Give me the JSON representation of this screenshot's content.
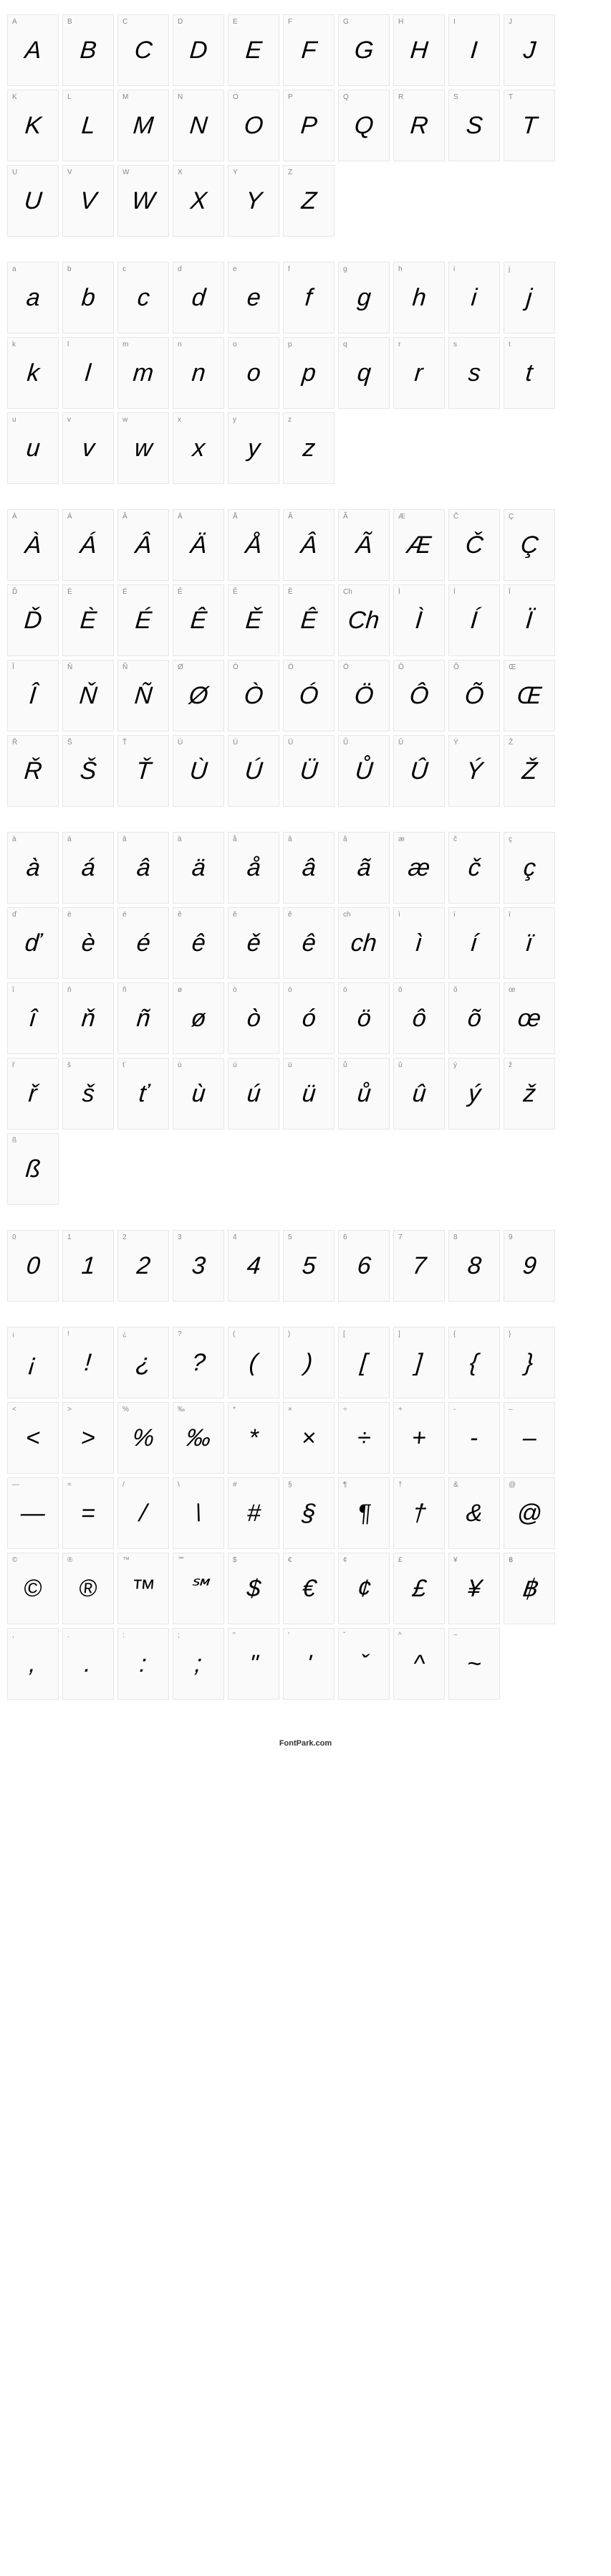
{
  "footer": "FontPark.com",
  "sections": [
    {
      "cells": [
        {
          "label": "A",
          "glyph": "A"
        },
        {
          "label": "B",
          "glyph": "B"
        },
        {
          "label": "C",
          "glyph": "C"
        },
        {
          "label": "D",
          "glyph": "D"
        },
        {
          "label": "E",
          "glyph": "E"
        },
        {
          "label": "F",
          "glyph": "F"
        },
        {
          "label": "G",
          "glyph": "G"
        },
        {
          "label": "H",
          "glyph": "H"
        },
        {
          "label": "I",
          "glyph": "I"
        },
        {
          "label": "J",
          "glyph": "J"
        },
        {
          "label": "K",
          "glyph": "K"
        },
        {
          "label": "L",
          "glyph": "L"
        },
        {
          "label": "M",
          "glyph": "M"
        },
        {
          "label": "N",
          "glyph": "N"
        },
        {
          "label": "O",
          "glyph": "O"
        },
        {
          "label": "P",
          "glyph": "P"
        },
        {
          "label": "Q",
          "glyph": "Q"
        },
        {
          "label": "R",
          "glyph": "R"
        },
        {
          "label": "S",
          "glyph": "S"
        },
        {
          "label": "T",
          "glyph": "T"
        },
        {
          "label": "U",
          "glyph": "U"
        },
        {
          "label": "V",
          "glyph": "V"
        },
        {
          "label": "W",
          "glyph": "W"
        },
        {
          "label": "X",
          "glyph": "X"
        },
        {
          "label": "Y",
          "glyph": "Y"
        },
        {
          "label": "Z",
          "glyph": "Z"
        }
      ]
    },
    {
      "cells": [
        {
          "label": "a",
          "glyph": "a"
        },
        {
          "label": "b",
          "glyph": "b"
        },
        {
          "label": "c",
          "glyph": "c"
        },
        {
          "label": "d",
          "glyph": "d"
        },
        {
          "label": "e",
          "glyph": "e"
        },
        {
          "label": "f",
          "glyph": "f"
        },
        {
          "label": "g",
          "glyph": "g"
        },
        {
          "label": "h",
          "glyph": "h"
        },
        {
          "label": "i",
          "glyph": "i"
        },
        {
          "label": "j",
          "glyph": "j"
        },
        {
          "label": "k",
          "glyph": "k"
        },
        {
          "label": "l",
          "glyph": "l"
        },
        {
          "label": "m",
          "glyph": "m"
        },
        {
          "label": "n",
          "glyph": "n"
        },
        {
          "label": "o",
          "glyph": "o"
        },
        {
          "label": "p",
          "glyph": "p"
        },
        {
          "label": "q",
          "glyph": "q"
        },
        {
          "label": "r",
          "glyph": "r"
        },
        {
          "label": "s",
          "glyph": "s"
        },
        {
          "label": "t",
          "glyph": "t"
        },
        {
          "label": "u",
          "glyph": "u"
        },
        {
          "label": "v",
          "glyph": "v"
        },
        {
          "label": "w",
          "glyph": "w"
        },
        {
          "label": "x",
          "glyph": "x"
        },
        {
          "label": "y",
          "glyph": "y"
        },
        {
          "label": "z",
          "glyph": "z"
        }
      ]
    },
    {
      "cells": [
        {
          "label": "À",
          "glyph": "À"
        },
        {
          "label": "Á",
          "glyph": "Á"
        },
        {
          "label": "Â",
          "glyph": "Â"
        },
        {
          "label": "Ä",
          "glyph": "Ä"
        },
        {
          "label": "Å",
          "glyph": "Å"
        },
        {
          "label": "Â",
          "glyph": "Â"
        },
        {
          "label": "Ã",
          "glyph": "Ã"
        },
        {
          "label": "Æ",
          "glyph": "Æ"
        },
        {
          "label": "Č",
          "glyph": "Č"
        },
        {
          "label": "Ç",
          "glyph": "Ç"
        },
        {
          "label": "Ď",
          "glyph": "Ď"
        },
        {
          "label": "È",
          "glyph": "È"
        },
        {
          "label": "É",
          "glyph": "É"
        },
        {
          "label": "Ê",
          "glyph": "Ê"
        },
        {
          "label": "Ě",
          "glyph": "Ě"
        },
        {
          "label": "Ê",
          "glyph": "Ê"
        },
        {
          "label": "Ch",
          "glyph": "Ch"
        },
        {
          "label": "Ì",
          "glyph": "Ì"
        },
        {
          "label": "Í",
          "glyph": "Í"
        },
        {
          "label": "Ï",
          "glyph": "Ï"
        },
        {
          "label": "Î",
          "glyph": "Î"
        },
        {
          "label": "Ň",
          "glyph": "Ň"
        },
        {
          "label": "Ñ",
          "glyph": "Ñ"
        },
        {
          "label": "Ø",
          "glyph": "Ø"
        },
        {
          "label": "Ò",
          "glyph": "Ò"
        },
        {
          "label": "Ó",
          "glyph": "Ó"
        },
        {
          "label": "Ö",
          "glyph": "Ö"
        },
        {
          "label": "Ô",
          "glyph": "Ô"
        },
        {
          "label": "Õ",
          "glyph": "Õ"
        },
        {
          "label": "Œ",
          "glyph": "Œ"
        },
        {
          "label": "Ř",
          "glyph": "Ř"
        },
        {
          "label": "Š",
          "glyph": "Š"
        },
        {
          "label": "Ť",
          "glyph": "Ť"
        },
        {
          "label": "Ù",
          "glyph": "Ù"
        },
        {
          "label": "Ú",
          "glyph": "Ú"
        },
        {
          "label": "Ü",
          "glyph": "Ü"
        },
        {
          "label": "Ů",
          "glyph": "Ů"
        },
        {
          "label": "Û",
          "glyph": "Û"
        },
        {
          "label": "Ý",
          "glyph": "Ý"
        },
        {
          "label": "Ž",
          "glyph": "Ž"
        }
      ]
    },
    {
      "cells": [
        {
          "label": "à",
          "glyph": "à"
        },
        {
          "label": "á",
          "glyph": "á"
        },
        {
          "label": "â",
          "glyph": "â"
        },
        {
          "label": "ä",
          "glyph": "ä"
        },
        {
          "label": "å",
          "glyph": "å"
        },
        {
          "label": "â",
          "glyph": "â"
        },
        {
          "label": "ã",
          "glyph": "ã"
        },
        {
          "label": "æ",
          "glyph": "æ"
        },
        {
          "label": "č",
          "glyph": "č"
        },
        {
          "label": "ç",
          "glyph": "ç"
        },
        {
          "label": "ď",
          "glyph": "ď"
        },
        {
          "label": "è",
          "glyph": "è"
        },
        {
          "label": "é",
          "glyph": "é"
        },
        {
          "label": "ê",
          "glyph": "ê"
        },
        {
          "label": "ě",
          "glyph": "ě"
        },
        {
          "label": "ê",
          "glyph": "ê"
        },
        {
          "label": "ch",
          "glyph": "ch"
        },
        {
          "label": "ì",
          "glyph": "ì"
        },
        {
          "label": "í",
          "glyph": "í"
        },
        {
          "label": "ï",
          "glyph": "ï"
        },
        {
          "label": "î",
          "glyph": "î"
        },
        {
          "label": "ň",
          "glyph": "ň"
        },
        {
          "label": "ñ",
          "glyph": "ñ"
        },
        {
          "label": "ø",
          "glyph": "ø"
        },
        {
          "label": "ò",
          "glyph": "ò"
        },
        {
          "label": "ó",
          "glyph": "ó"
        },
        {
          "label": "ö",
          "glyph": "ö"
        },
        {
          "label": "ô",
          "glyph": "ô"
        },
        {
          "label": "õ",
          "glyph": "õ"
        },
        {
          "label": "œ",
          "glyph": "œ"
        },
        {
          "label": "ř",
          "glyph": "ř"
        },
        {
          "label": "š",
          "glyph": "š"
        },
        {
          "label": "ť",
          "glyph": "ť"
        },
        {
          "label": "ù",
          "glyph": "ù"
        },
        {
          "label": "ú",
          "glyph": "ú"
        },
        {
          "label": "ü",
          "glyph": "ü"
        },
        {
          "label": "ů",
          "glyph": "ů"
        },
        {
          "label": "û",
          "glyph": "û"
        },
        {
          "label": "ý",
          "glyph": "ý"
        },
        {
          "label": "ž",
          "glyph": "ž"
        },
        {
          "label": "ß",
          "glyph": "ß"
        }
      ]
    },
    {
      "cells": [
        {
          "label": "0",
          "glyph": "0"
        },
        {
          "label": "1",
          "glyph": "1"
        },
        {
          "label": "2",
          "glyph": "2"
        },
        {
          "label": "3",
          "glyph": "3"
        },
        {
          "label": "4",
          "glyph": "4"
        },
        {
          "label": "5",
          "glyph": "5"
        },
        {
          "label": "6",
          "glyph": "6"
        },
        {
          "label": "7",
          "glyph": "7"
        },
        {
          "label": "8",
          "glyph": "8"
        },
        {
          "label": "9",
          "glyph": "9"
        }
      ]
    },
    {
      "cells": [
        {
          "label": "¡",
          "glyph": "¡"
        },
        {
          "label": "!",
          "glyph": "!"
        },
        {
          "label": "¿",
          "glyph": "¿"
        },
        {
          "label": "?",
          "glyph": "?"
        },
        {
          "label": "(",
          "glyph": "("
        },
        {
          "label": ")",
          "glyph": ")"
        },
        {
          "label": "[",
          "glyph": "["
        },
        {
          "label": "]",
          "glyph": "]"
        },
        {
          "label": "{",
          "glyph": "{"
        },
        {
          "label": "}",
          "glyph": "}"
        },
        {
          "label": "<",
          "glyph": "<"
        },
        {
          "label": ">",
          "glyph": ">"
        },
        {
          "label": "%",
          "glyph": "%"
        },
        {
          "label": "‰",
          "glyph": "‰"
        },
        {
          "label": "*",
          "glyph": "*"
        },
        {
          "label": "×",
          "glyph": "×"
        },
        {
          "label": "÷",
          "glyph": "÷"
        },
        {
          "label": "+",
          "glyph": "+"
        },
        {
          "label": "-",
          "glyph": "-"
        },
        {
          "label": "–",
          "glyph": "–"
        },
        {
          "label": "—",
          "glyph": "—"
        },
        {
          "label": "=",
          "glyph": "="
        },
        {
          "label": "/",
          "glyph": "/"
        },
        {
          "label": "\\",
          "glyph": "\\"
        },
        {
          "label": "#",
          "glyph": "#"
        },
        {
          "label": "§",
          "glyph": "§"
        },
        {
          "label": "¶",
          "glyph": "¶"
        },
        {
          "label": "†",
          "glyph": "†"
        },
        {
          "label": "&",
          "glyph": "&"
        },
        {
          "label": "@",
          "glyph": "@"
        },
        {
          "label": "©",
          "glyph": "©"
        },
        {
          "label": "®",
          "glyph": "®"
        },
        {
          "label": "™",
          "glyph": "™"
        },
        {
          "label": "℠",
          "glyph": "℠"
        },
        {
          "label": "$",
          "glyph": "$"
        },
        {
          "label": "€",
          "glyph": "€"
        },
        {
          "label": "¢",
          "glyph": "¢"
        },
        {
          "label": "£",
          "glyph": "£"
        },
        {
          "label": "¥",
          "glyph": "¥"
        },
        {
          "label": "฿",
          "glyph": "฿"
        },
        {
          "label": ",",
          "glyph": ","
        },
        {
          "label": ".",
          "glyph": "."
        },
        {
          "label": ":",
          "glyph": ":"
        },
        {
          "label": ";",
          "glyph": ";"
        },
        {
          "label": "\"",
          "glyph": "\""
        },
        {
          "label": "'",
          "glyph": "'"
        },
        {
          "label": "ˇ",
          "glyph": "ˇ"
        },
        {
          "label": "^",
          "glyph": "^"
        },
        {
          "label": "~",
          "glyph": "~"
        }
      ]
    }
  ]
}
